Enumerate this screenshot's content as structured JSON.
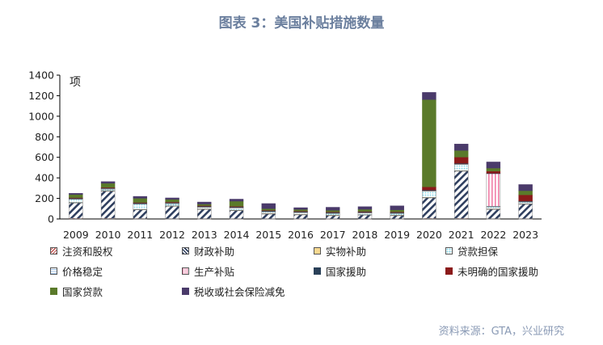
{
  "header": {
    "title": "图表 3：美国补贴措施数量"
  },
  "footer": {
    "source": "资料来源：GTA，兴业研究"
  },
  "chart_data": {
    "type": "bar",
    "stacked": true,
    "ylabel": "项",
    "xlabel": "",
    "ylim": [
      0,
      1400
    ],
    "yticks": [
      0,
      200,
      400,
      600,
      800,
      1000,
      1200,
      1400
    ],
    "grid": false,
    "legend_position": "bottom",
    "categories": [
      "2009",
      "2010",
      "2011",
      "2012",
      "2013",
      "2014",
      "2015",
      "2016",
      "2017",
      "2018",
      "2019",
      "2020",
      "2021",
      "2022",
      "2023"
    ],
    "series": [
      {
        "name": "注资和股权",
        "color": "#c0504d",
        "pattern": "diag-red",
        "values": [
          6,
          5,
          4,
          3,
          3,
          3,
          3,
          2,
          2,
          2,
          2,
          5,
          5,
          3,
          3
        ]
      },
      {
        "name": "财政补助",
        "color": "#2f3f5f",
        "pattern": "diag-dark",
        "values": [
          150,
          265,
          85,
          120,
          90,
          78,
          45,
          38,
          30,
          35,
          30,
          200,
          460,
          90,
          140
        ]
      },
      {
        "name": "实物补助",
        "color": "#e0b040",
        "pattern": "cross-gold",
        "values": [
          5,
          5,
          5,
          5,
          5,
          5,
          5,
          5,
          5,
          5,
          5,
          5,
          5,
          5,
          5
        ]
      },
      {
        "name": "贷款担保",
        "color": "#7fd6e8",
        "pattern": "dots-cyan",
        "values": [
          30,
          15,
          50,
          20,
          15,
          20,
          15,
          15,
          15,
          15,
          15,
          60,
          60,
          20,
          15
        ]
      },
      {
        "name": "价格稳定",
        "color": "#9fc0e6",
        "pattern": "hlines-blue",
        "values": [
          5,
          5,
          5,
          5,
          5,
          5,
          5,
          5,
          5,
          5,
          5,
          5,
          5,
          5,
          5
        ]
      },
      {
        "name": "生产补贴",
        "color": "#f080a8",
        "pattern": "vlines-pink",
        "values": [
          5,
          5,
          5,
          5,
          5,
          5,
          5,
          5,
          5,
          5,
          5,
          5,
          5,
          320,
          5
        ]
      },
      {
        "name": "国家援助",
        "color": "#2a4058",
        "pattern": "solid",
        "values": [
          2,
          2,
          2,
          2,
          2,
          2,
          2,
          2,
          2,
          2,
          2,
          2,
          2,
          2,
          2
        ]
      },
      {
        "name": "未明确的国家援助",
        "color": "#8b1a1a",
        "pattern": "solid",
        "values": [
          5,
          5,
          5,
          5,
          5,
          5,
          5,
          5,
          5,
          5,
          5,
          30,
          60,
          20,
          60
        ]
      },
      {
        "name": "国家贷款",
        "color": "#5a7a2a",
        "pattern": "solid",
        "values": [
          30,
          40,
          40,
          25,
          15,
          50,
          15,
          15,
          15,
          20,
          20,
          850,
          65,
          30,
          40
        ]
      },
      {
        "name": "税收或社会保险减免",
        "color": "#4a3a6a",
        "pattern": "solid",
        "values": [
          12,
          17,
          19,
          15,
          20,
          20,
          50,
          18,
          30,
          26,
          39,
          70,
          63,
          60,
          60
        ]
      }
    ]
  }
}
